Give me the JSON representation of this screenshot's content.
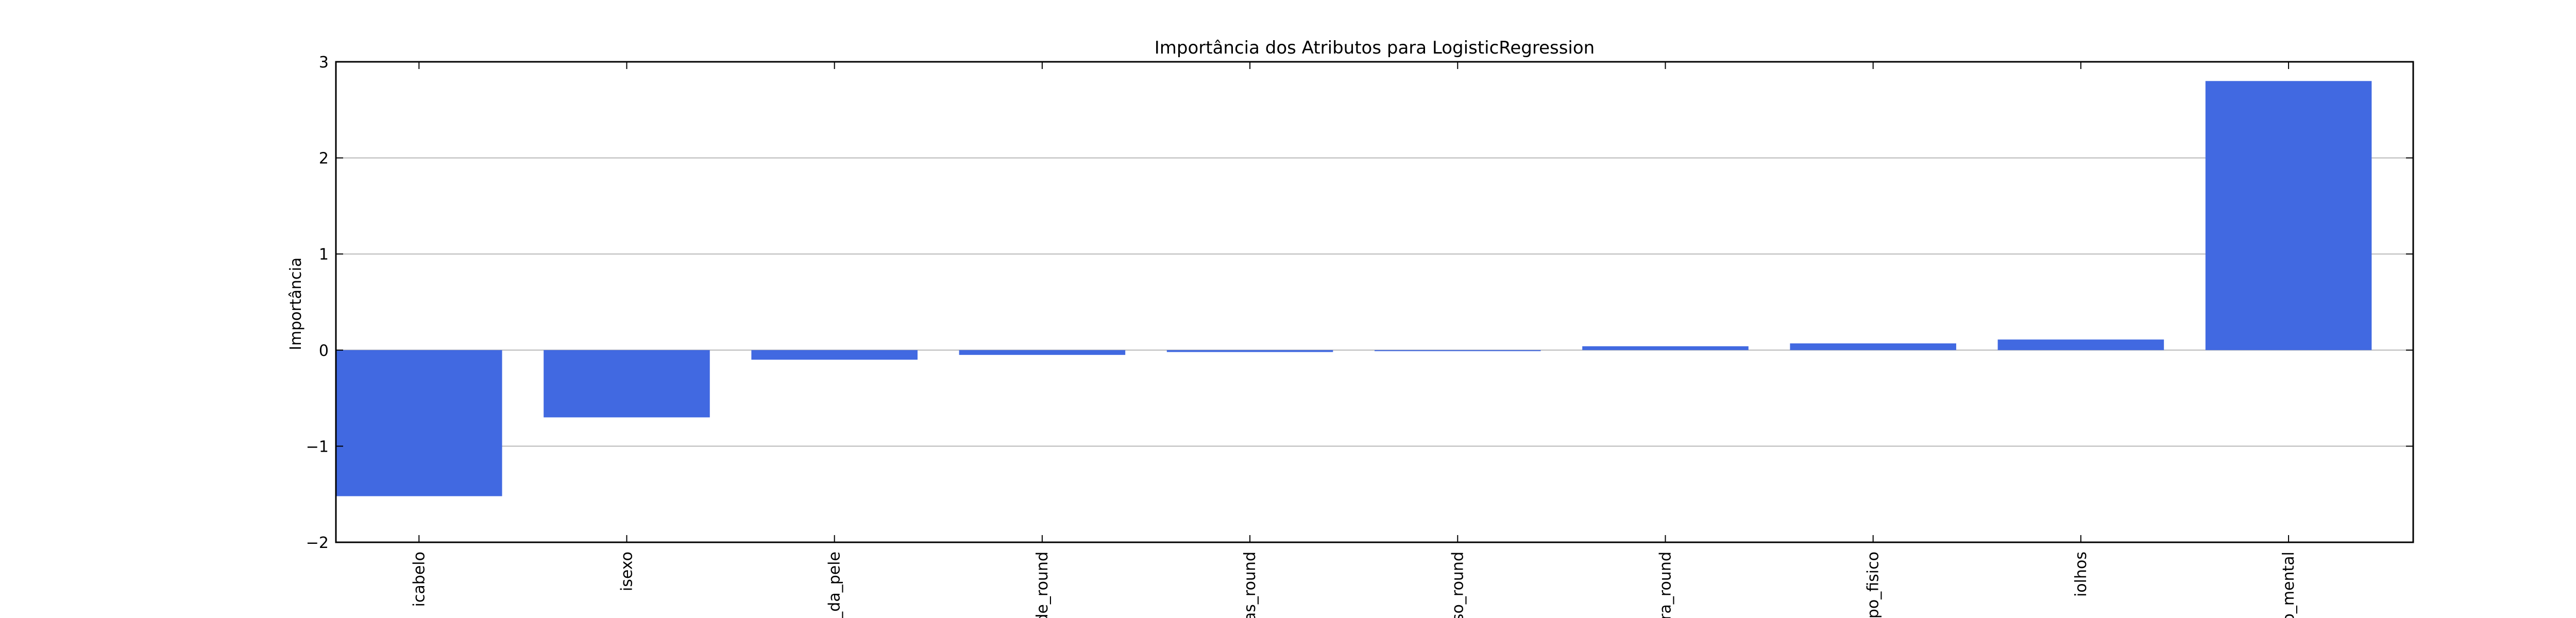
{
  "chart_data": {
    "type": "bar",
    "title": "Importância dos Atributos para LogisticRegression",
    "xlabel": "",
    "ylabel": "Importância",
    "ylim": [
      -2,
      3
    ],
    "yticks": [
      -2,
      -1,
      0,
      1,
      2,
      3
    ],
    "ytick_labels": [
      "−2",
      "−1",
      "0",
      "1",
      "2",
      "3"
    ],
    "grid": "horizontal",
    "bar_color": "#4169e1",
    "categories": [
      "icabelo",
      "isexo",
      "r_da_pele",
      "de_round",
      "ias_round",
      "eso_round",
      "ura_round",
      "tipo_fisico",
      "iolhos",
      "o_mental"
    ],
    "values": [
      -1.52,
      -0.7,
      -0.1,
      -0.05,
      -0.02,
      -0.01,
      0.04,
      0.07,
      0.11,
      2.8
    ]
  }
}
